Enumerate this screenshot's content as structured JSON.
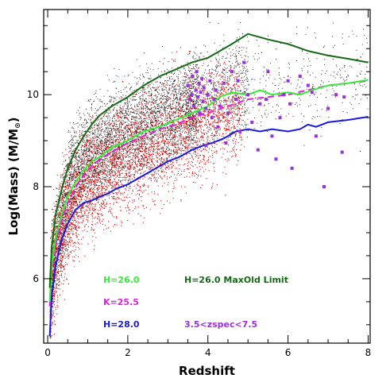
{
  "chart_data": {
    "type": "scatter",
    "xlabel": "Redshift",
    "ylabel": "Log(Mass)  (M/M",
    "ylabel_symbol": "⊙",
    "ylabel_close": ")",
    "xlim": [
      -0.1,
      8.05
    ],
    "ylim": [
      4.6,
      11.85
    ],
    "x_ticks": [
      0,
      2,
      4,
      6,
      8
    ],
    "y_ticks": [
      6,
      8,
      10
    ],
    "x_minor_step": 0.5,
    "y_minor_step": 0.5,
    "grid": false,
    "lines": [
      {
        "name": "H=28.0",
        "color": "#1a1adf",
        "dash": false,
        "points": [
          [
            0.05,
            4.75
          ],
          [
            0.1,
            5.6
          ],
          [
            0.2,
            6.3
          ],
          [
            0.35,
            6.85
          ],
          [
            0.5,
            7.2
          ],
          [
            0.7,
            7.5
          ],
          [
            0.9,
            7.65
          ],
          [
            1.1,
            7.7
          ],
          [
            1.3,
            7.78
          ],
          [
            1.5,
            7.85
          ],
          [
            1.7,
            7.95
          ],
          [
            2.0,
            8.05
          ],
          [
            2.3,
            8.2
          ],
          [
            2.5,
            8.3
          ],
          [
            2.8,
            8.45
          ],
          [
            3.0,
            8.55
          ],
          [
            3.3,
            8.65
          ],
          [
            3.6,
            8.8
          ],
          [
            3.9,
            8.9
          ],
          [
            4.1,
            8.95
          ],
          [
            4.4,
            9.05
          ],
          [
            4.7,
            9.2
          ],
          [
            5.0,
            9.25
          ],
          [
            5.3,
            9.2
          ],
          [
            5.6,
            9.25
          ],
          [
            6.0,
            9.2
          ],
          [
            6.3,
            9.25
          ],
          [
            6.5,
            9.35
          ],
          [
            6.7,
            9.3
          ],
          [
            7.0,
            9.4
          ],
          [
            7.5,
            9.45
          ],
          [
            8.0,
            9.52
          ]
        ]
      },
      {
        "name": "K=25.5",
        "color": "#e020e0",
        "dash": true,
        "points": [
          [
            0.05,
            5.4
          ],
          [
            0.1,
            6.2
          ],
          [
            0.2,
            6.75
          ],
          [
            0.35,
            7.25
          ],
          [
            0.5,
            7.65
          ],
          [
            0.7,
            8.0
          ],
          [
            0.9,
            8.25
          ],
          [
            1.1,
            8.45
          ],
          [
            1.3,
            8.6
          ],
          [
            1.6,
            8.75
          ],
          [
            2.0,
            8.95
          ],
          [
            2.4,
            9.1
          ],
          [
            2.8,
            9.25
          ],
          [
            3.2,
            9.35
          ],
          [
            3.6,
            9.5
          ],
          [
            4.0,
            9.6
          ],
          [
            4.5,
            9.75
          ],
          [
            5.0,
            9.9
          ],
          [
            5.5,
            9.95
          ],
          [
            6.0,
            10.0
          ],
          [
            6.5,
            10.1
          ],
          [
            7.0,
            10.2
          ],
          [
            7.5,
            10.25
          ],
          [
            8.0,
            10.3
          ]
        ]
      },
      {
        "name": "H=26.0",
        "color": "#33ee33",
        "dash": false,
        "points": [
          [
            0.05,
            5.5
          ],
          [
            0.1,
            6.3
          ],
          [
            0.2,
            6.9
          ],
          [
            0.35,
            7.4
          ],
          [
            0.5,
            7.8
          ],
          [
            0.7,
            8.1
          ],
          [
            0.9,
            8.35
          ],
          [
            1.1,
            8.55
          ],
          [
            1.3,
            8.65
          ],
          [
            1.6,
            8.85
          ],
          [
            2.0,
            9.0
          ],
          [
            2.4,
            9.2
          ],
          [
            2.8,
            9.3
          ],
          [
            3.2,
            9.45
          ],
          [
            3.6,
            9.6
          ],
          [
            4.0,
            9.75
          ],
          [
            4.3,
            9.95
          ],
          [
            4.6,
            10.05
          ],
          [
            5.0,
            10.0
          ],
          [
            5.3,
            10.1
          ],
          [
            5.6,
            10.0
          ],
          [
            6.0,
            10.05
          ],
          [
            6.3,
            10.0
          ],
          [
            6.6,
            10.1
          ],
          [
            7.0,
            10.2
          ],
          [
            7.5,
            10.25
          ],
          [
            8.0,
            10.32
          ]
        ]
      },
      {
        "name": "H=26.0 MaxOld Limit",
        "color": "#146b14",
        "dash": false,
        "points": [
          [
            0.05,
            5.8
          ],
          [
            0.1,
            6.7
          ],
          [
            0.2,
            7.4
          ],
          [
            0.35,
            7.95
          ],
          [
            0.5,
            8.4
          ],
          [
            0.7,
            8.8
          ],
          [
            0.9,
            9.1
          ],
          [
            1.1,
            9.35
          ],
          [
            1.3,
            9.55
          ],
          [
            1.6,
            9.75
          ],
          [
            2.0,
            9.95
          ],
          [
            2.4,
            10.2
          ],
          [
            2.8,
            10.4
          ],
          [
            3.2,
            10.55
          ],
          [
            3.6,
            10.7
          ],
          [
            4.0,
            10.8
          ],
          [
            4.3,
            10.95
          ],
          [
            4.6,
            11.1
          ],
          [
            5.0,
            11.32
          ],
          [
            5.5,
            11.2
          ],
          [
            6.0,
            11.1
          ],
          [
            6.5,
            10.95
          ],
          [
            7.0,
            10.85
          ],
          [
            7.5,
            10.78
          ],
          [
            8.0,
            10.7
          ]
        ]
      }
    ],
    "spec_points": [
      [
        3.5,
        10.2
      ],
      [
        3.55,
        9.9
      ],
      [
        3.6,
        10.0
      ],
      [
        3.62,
        10.4
      ],
      [
        3.65,
        9.75
      ],
      [
        3.7,
        10.1
      ],
      [
        3.72,
        10.5
      ],
      [
        3.75,
        9.95
      ],
      [
        3.78,
        10.25
      ],
      [
        3.8,
        9.6
      ],
      [
        3.82,
        10.05
      ],
      [
        3.85,
        10.35
      ],
      [
        3.88,
        9.85
      ],
      [
        3.9,
        10.15
      ],
      [
        3.95,
        9.7
      ],
      [
        4.0,
        10.0
      ],
      [
        4.05,
        10.3
      ],
      [
        4.1,
        9.5
      ],
      [
        4.15,
        9.9
      ],
      [
        4.2,
        10.1
      ],
      [
        4.25,
        9.3
      ],
      [
        4.3,
        9.75
      ],
      [
        4.4,
        10.25
      ],
      [
        4.5,
        9.6
      ],
      [
        4.6,
        10.5
      ],
      [
        4.7,
        9.9
      ],
      [
        4.8,
        9.2
      ],
      [
        4.9,
        10.7
      ],
      [
        5.0,
        10.0
      ],
      [
        5.1,
        9.4
      ],
      [
        5.3,
        9.8
      ],
      [
        5.5,
        10.5
      ],
      [
        5.6,
        9.1
      ],
      [
        5.7,
        8.6
      ],
      [
        5.8,
        9.5
      ],
      [
        5.9,
        10.0
      ],
      [
        6.0,
        10.3
      ],
      [
        6.1,
        8.4
      ],
      [
        6.3,
        10.4
      ],
      [
        6.5,
        10.2
      ],
      [
        6.7,
        9.1
      ],
      [
        6.9,
        8.0
      ],
      [
        7.0,
        9.7
      ],
      [
        7.2,
        10.0
      ],
      [
        7.4,
        9.95
      ],
      [
        6.05,
        9.8
      ],
      [
        4.45,
        8.95
      ],
      [
        5.25,
        8.8
      ],
      [
        3.95,
        8.9
      ],
      [
        4.75,
        10.3
      ],
      [
        5.45,
        9.9
      ],
      [
        6.6,
        10.05
      ],
      [
        7.35,
        8.75
      ]
    ],
    "spec_color": "#9b30e0",
    "black_color": "#000000",
    "red_color": "#ee0000",
    "legend": [
      {
        "label": "H=26.0",
        "color": "#33ee33",
        "pos": "left-1"
      },
      {
        "label": "K=25.5",
        "color": "#e020e0",
        "pos": "left-2"
      },
      {
        "label": "H=28.0",
        "color": "#1a1adf",
        "pos": "left-3"
      },
      {
        "label": "H=26.0 MaxOld Limit",
        "color": "#146b14",
        "pos": "right-1"
      },
      {
        "label": "3.5<zspec<7.5",
        "color": "#9b30e0",
        "pos": "right-3"
      }
    ]
  }
}
